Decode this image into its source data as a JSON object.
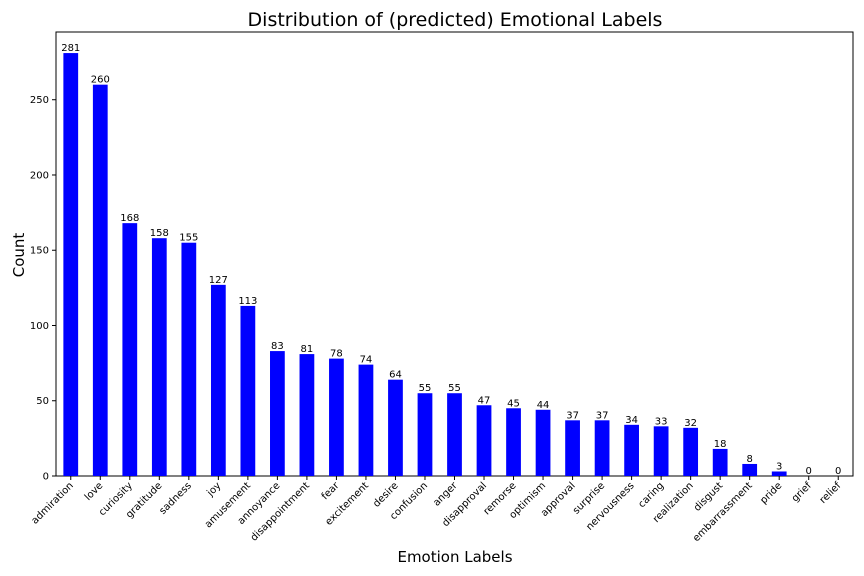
{
  "chart_data": {
    "type": "bar",
    "title": "Distribution of (predicted) Emotional Labels",
    "xlabel": "Emotion Labels",
    "ylabel": "Count",
    "ylim": [
      0,
      295
    ],
    "yticks": [
      0,
      50,
      100,
      150,
      200,
      250
    ],
    "grid": false,
    "bar_color": "#0000ff",
    "categories": [
      "admiration",
      "love",
      "curiosity",
      "gratitude",
      "sadness",
      "joy",
      "amusement",
      "annoyance",
      "disappointment",
      "fear",
      "excitement",
      "desire",
      "confusion",
      "anger",
      "disapproval",
      "remorse",
      "optimism",
      "approval",
      "surprise",
      "nervousness",
      "caring",
      "realization",
      "disgust",
      "embarrassment",
      "pride",
      "grief",
      "relief"
    ],
    "values": [
      281,
      260,
      168,
      158,
      155,
      127,
      113,
      83,
      81,
      78,
      74,
      64,
      55,
      55,
      47,
      45,
      44,
      37,
      37,
      34,
      33,
      32,
      18,
      8,
      3,
      0,
      0
    ]
  }
}
